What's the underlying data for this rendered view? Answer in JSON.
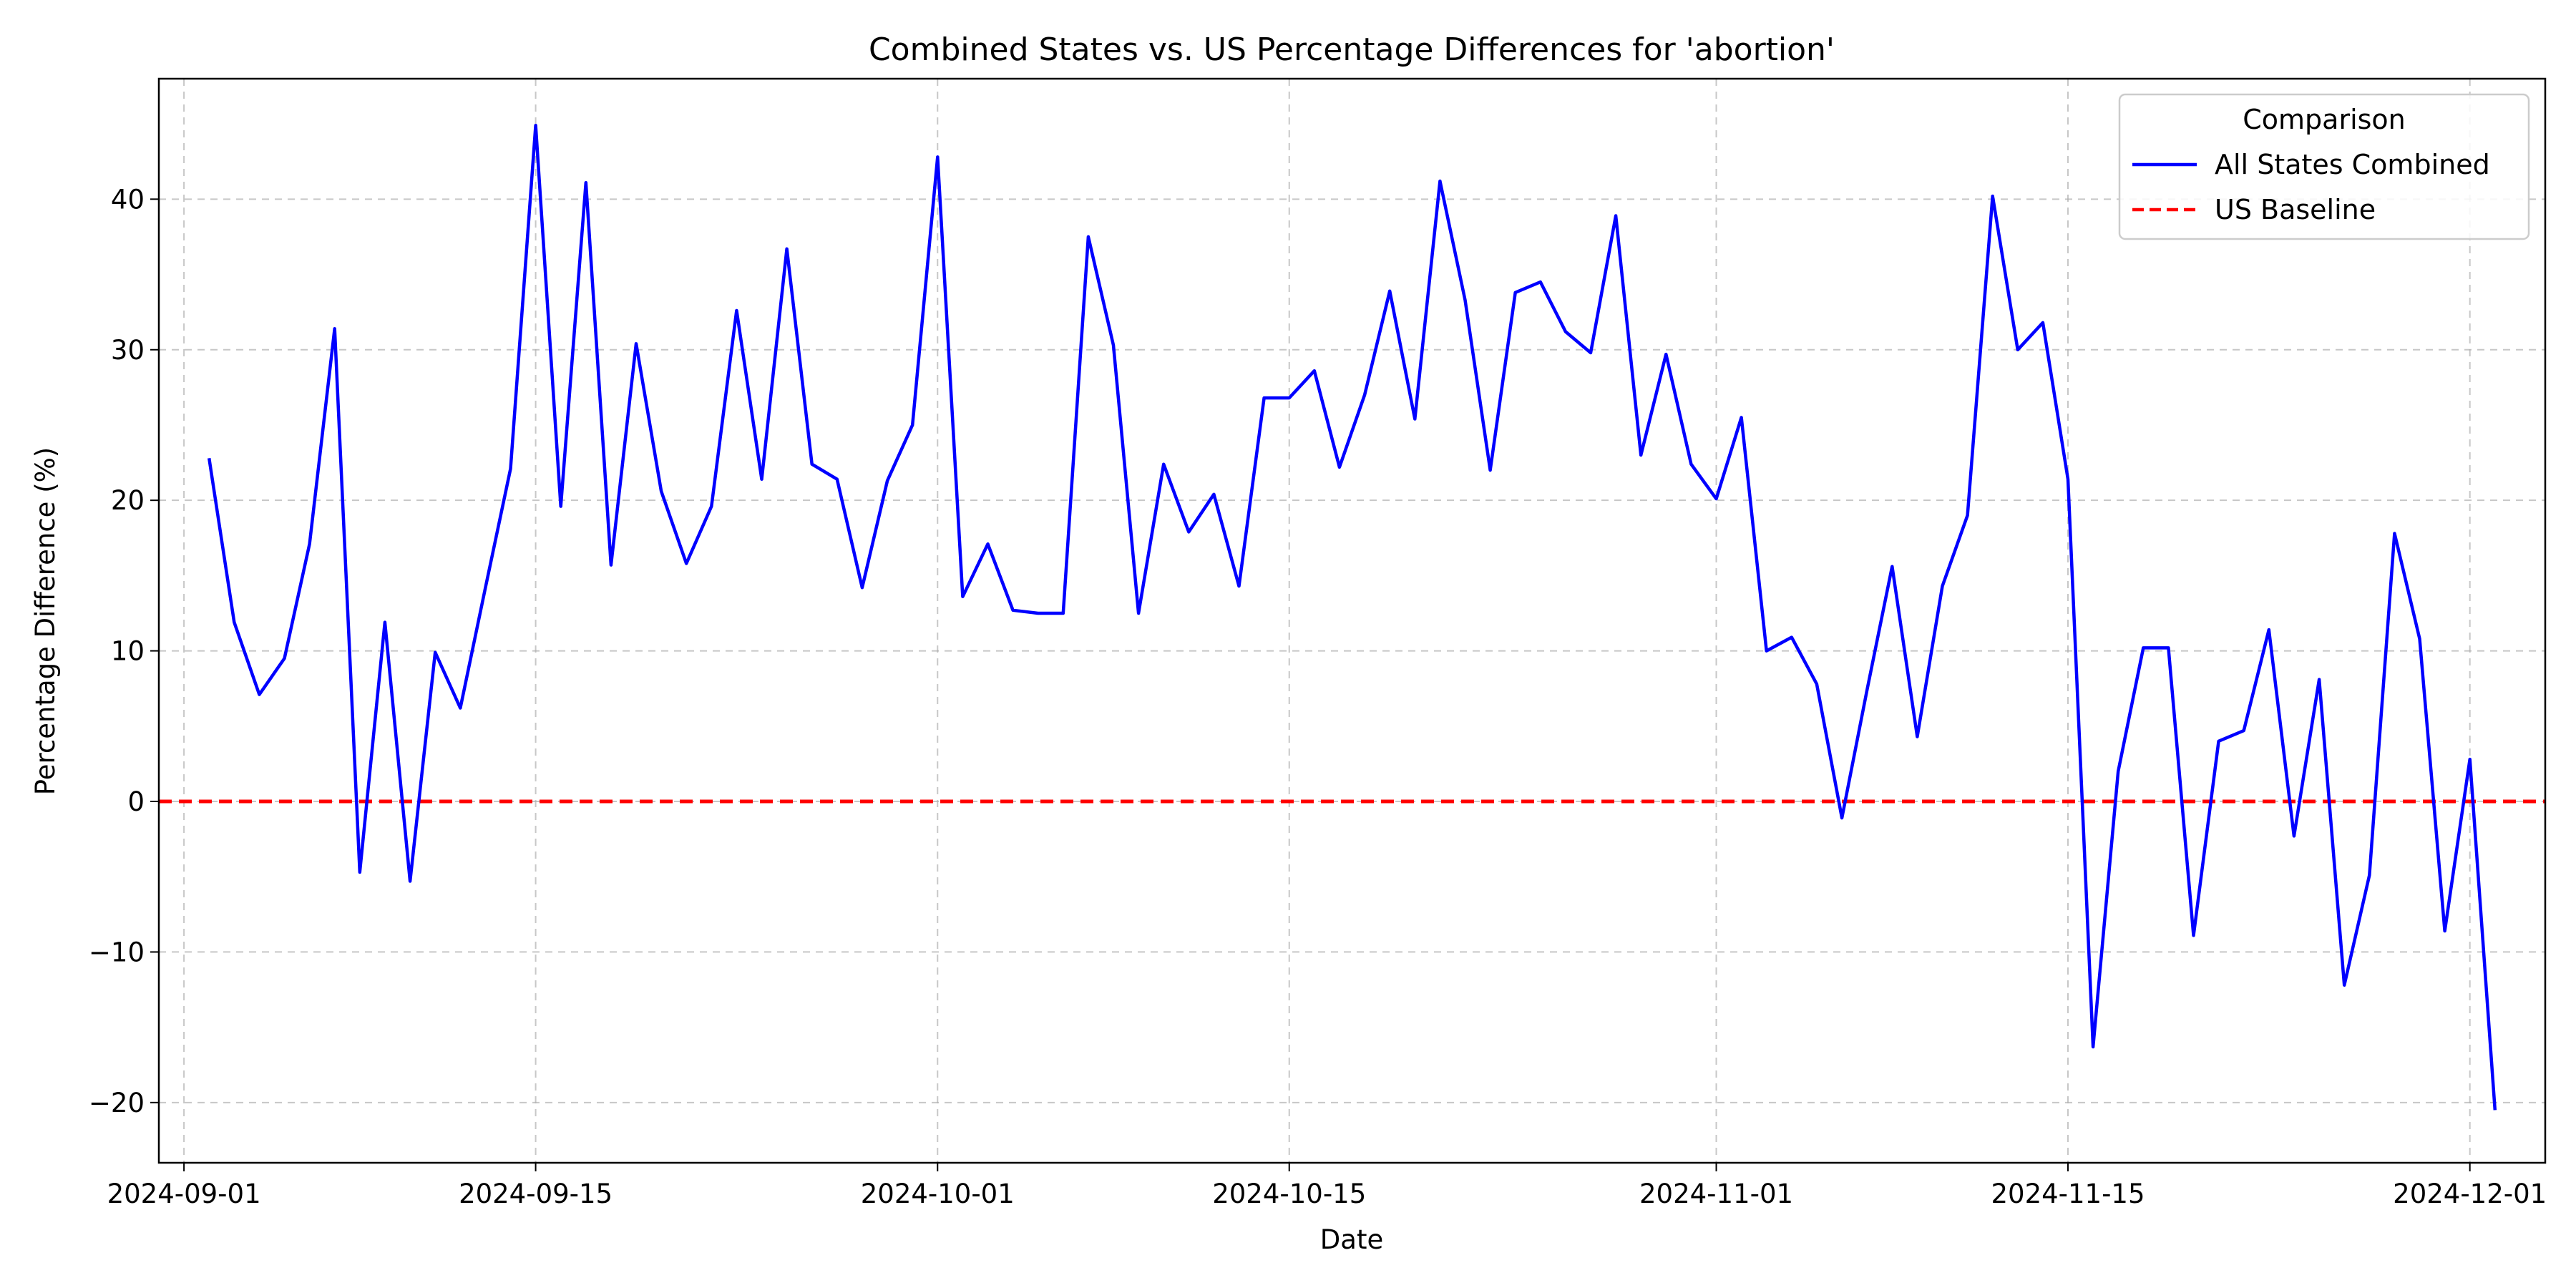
{
  "chart_data": {
    "type": "line",
    "title": "Combined States vs. US Percentage Differences for 'abortion'",
    "xlabel": "Date",
    "ylabel": "Percentage Difference (%)",
    "x_start": "2024-09-02",
    "xlim": [
      "2024-08-31",
      "2024-12-04"
    ],
    "ylim": [
      -24,
      48
    ],
    "grid": true,
    "legend": {
      "title": "Comparison",
      "placement": "top-right"
    },
    "x_ticks": [
      "2024-09-01",
      "2024-09-15",
      "2024-10-01",
      "2024-10-15",
      "2024-11-01",
      "2024-11-15",
      "2024-12-01"
    ],
    "y_ticks": [
      -20,
      -10,
      0,
      10,
      20,
      30,
      40
    ],
    "series": [
      {
        "name": "All States Combined",
        "color": "#0000ff",
        "style": "solid",
        "values": [
          22.8,
          11.9,
          7.1,
          9.5,
          17.1,
          31.4,
          -4.7,
          11.9,
          -5.3,
          9.9,
          6.2,
          14.2,
          22.1,
          44.9,
          19.6,
          41.1,
          15.7,
          30.4,
          20.6,
          15.8,
          19.6,
          32.6,
          21.4,
          36.7,
          22.4,
          21.4,
          14.2,
          21.3,
          25.0,
          42.8,
          13.6,
          17.1,
          12.7,
          12.5,
          12.5,
          37.5,
          30.3,
          12.5,
          22.4,
          17.9,
          20.4,
          14.3,
          26.8,
          26.8,
          28.6,
          22.2,
          27.0,
          33.9,
          25.4,
          41.2,
          33.3,
          22.0,
          33.8,
          34.5,
          31.2,
          29.8,
          38.9,
          23.0,
          29.7,
          22.4,
          20.1,
          25.5,
          10.0,
          10.9,
          7.8,
          -1.1,
          7.4,
          15.6,
          4.3,
          14.3,
          19.0,
          40.2,
          30.0,
          31.8,
          21.4,
          -16.3,
          2.0,
          10.2,
          10.2,
          -8.9,
          4.0,
          4.7,
          11.4,
          -2.3,
          8.1,
          -12.2,
          -4.9,
          17.8,
          10.8,
          -8.6,
          2.8,
          -20.5
        ]
      },
      {
        "name": "US Baseline",
        "color": "#ff0000",
        "style": "dashed",
        "values": [
          0
        ]
      }
    ]
  }
}
